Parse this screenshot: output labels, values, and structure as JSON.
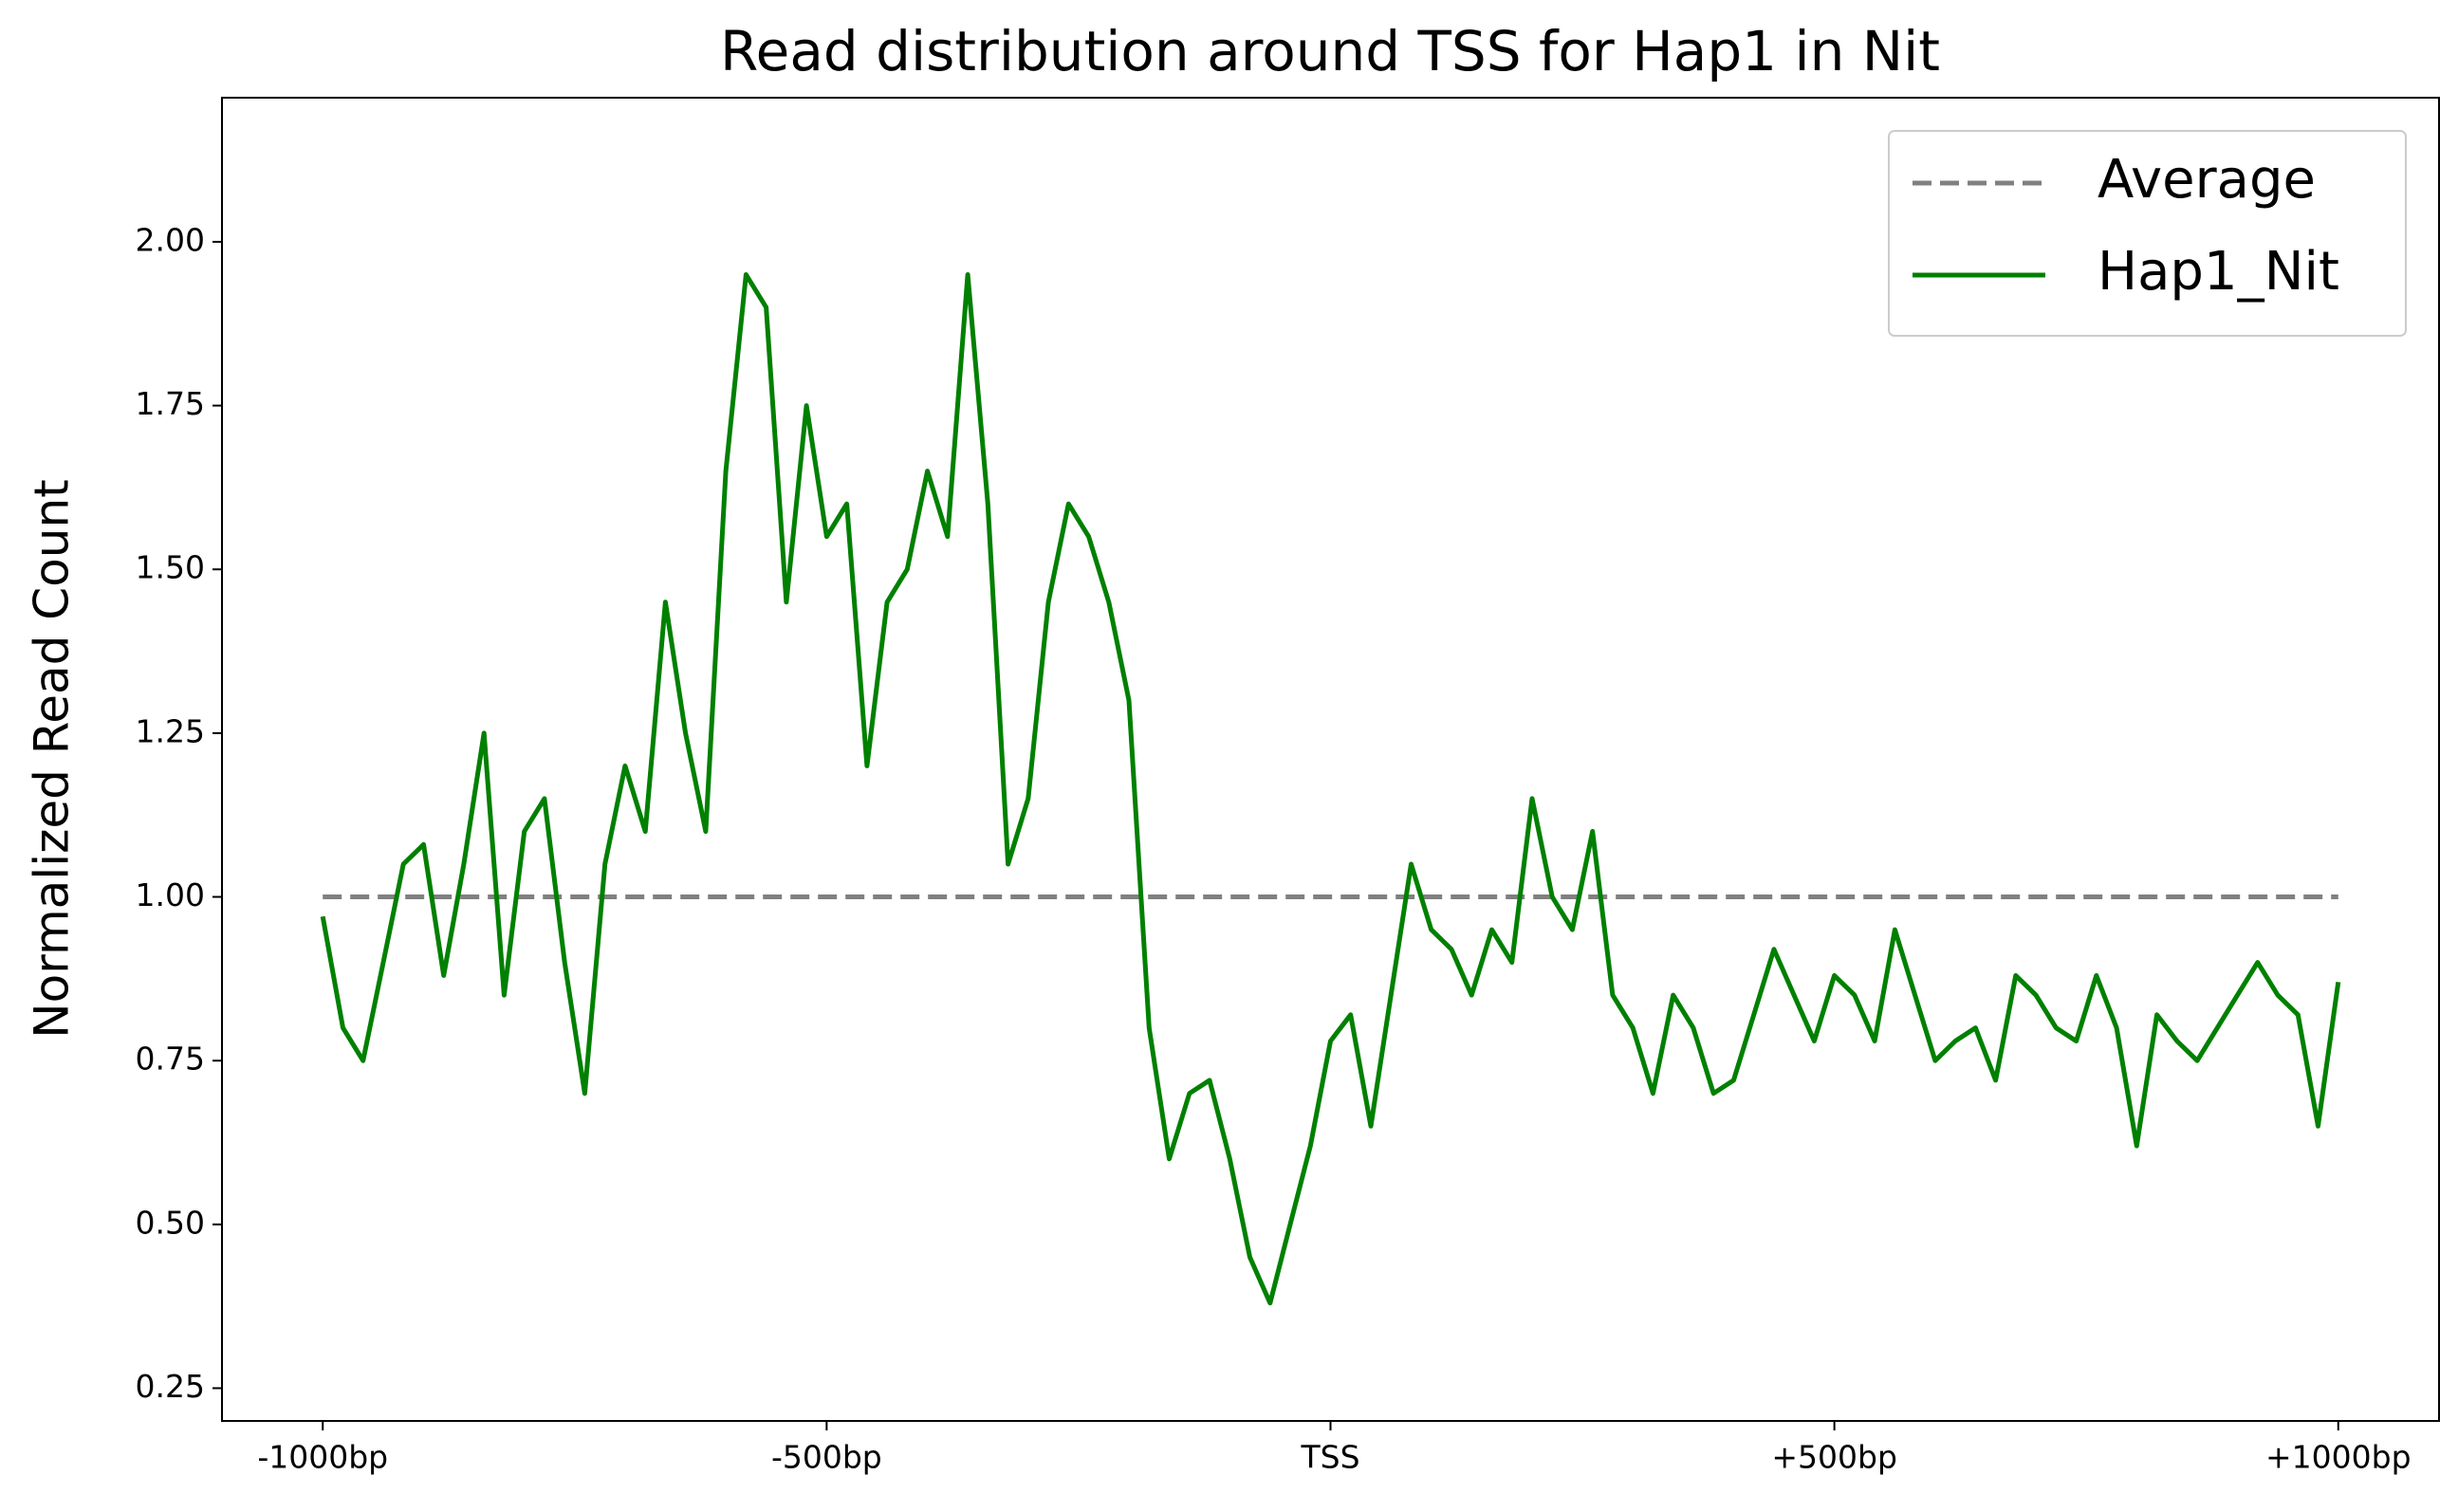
{
  "chart_data": {
    "type": "line",
    "title": "Read distribution around TSS for Hap1 in Nit",
    "y_label": "Normalized Read Count",
    "xlim": [
      -1100,
      1100
    ],
    "ylim": [
      0.2,
      2.22
    ],
    "xticks": [
      {
        "value": -1000,
        "label": "-1000bp"
      },
      {
        "value": -500,
        "label": "-500bp"
      },
      {
        "value": 0,
        "label": "TSS"
      },
      {
        "value": 500,
        "label": "+500bp"
      },
      {
        "value": 1000,
        "label": "+1000bp"
      }
    ],
    "yticks": [
      0.25,
      {
        "value": 0.5,
        "label": "0.50"
      },
      0.75,
      {
        "value": 1,
        "label": "1.00"
      },
      1.25,
      {
        "value": 1.5,
        "label": "1.50"
      },
      1.75,
      {
        "value": 2,
        "label": "2.00"
      }
    ],
    "grid": false,
    "legend": "upper right",
    "x": [
      -1000,
      -980,
      -960,
      -940,
      -920,
      -900,
      -880,
      -860,
      -840,
      -820,
      -800,
      -780,
      -760,
      -740,
      -720,
      -700,
      -680,
      -660,
      -640,
      -620,
      -600,
      -580,
      -560,
      -540,
      -520,
      -500,
      -480,
      -460,
      -440,
      -420,
      -400,
      -380,
      -360,
      -340,
      -320,
      -300,
      -280,
      -260,
      -240,
      -220,
      -200,
      -180,
      -160,
      -140,
      -120,
      -100,
      -80,
      -60,
      -40,
      -20,
      0,
      20,
      40,
      60,
      80,
      100,
      120,
      140,
      160,
      180,
      200,
      220,
      240,
      260,
      280,
      300,
      320,
      340,
      360,
      380,
      400,
      420,
      440,
      460,
      480,
      500,
      520,
      540,
      560,
      580,
      600,
      620,
      640,
      660,
      680,
      700,
      720,
      740,
      760,
      780,
      800,
      820,
      840,
      860,
      880,
      900,
      920,
      940,
      960,
      980,
      1000
    ],
    "series": [
      {
        "name": "Average",
        "color": "#808080",
        "dash": true,
        "x": [
          -1000,
          1000
        ],
        "values": [
          1,
          1
        ]
      },
      {
        "name": "Hap1_Nit",
        "color": "#008000",
        "dash": false,
        "values": [
          0.97,
          0.8,
          0.75,
          0.9,
          1.05,
          1.08,
          0.88,
          1.05,
          1.25,
          0.85,
          1.1,
          1.15,
          0.9,
          0.7,
          1.05,
          1.2,
          1.1,
          1.45,
          1.25,
          1.1,
          1.65,
          1.95,
          1.9,
          1.45,
          1.75,
          1.55,
          1.6,
          1.2,
          1.45,
          1.5,
          1.65,
          1.55,
          1.95,
          1.6,
          1.05,
          1.15,
          1.45,
          1.6,
          1.55,
          1.45,
          1.3,
          0.8,
          0.6,
          0.7,
          0.72,
          0.6,
          0.45,
          0.38,
          0.5,
          0.62,
          0.78,
          0.82,
          0.65,
          0.85,
          1.05,
          0.95,
          0.92,
          0.85,
          0.95,
          0.9,
          1.15,
          1.0,
          0.95,
          1.1,
          0.85,
          0.8,
          0.7,
          0.85,
          0.8,
          0.7,
          0.72,
          0.82,
          0.92,
          0.85,
          0.78,
          0.88,
          0.85,
          0.78,
          0.95,
          0.85,
          0.75,
          0.78,
          0.8,
          0.72,
          0.88,
          0.85,
          0.8,
          0.78,
          0.88,
          0.8,
          0.62,
          0.82,
          0.78,
          0.75,
          0.8,
          0.85,
          0.9,
          0.85,
          0.82,
          0.65,
          0.87
        ]
      }
    ]
  }
}
